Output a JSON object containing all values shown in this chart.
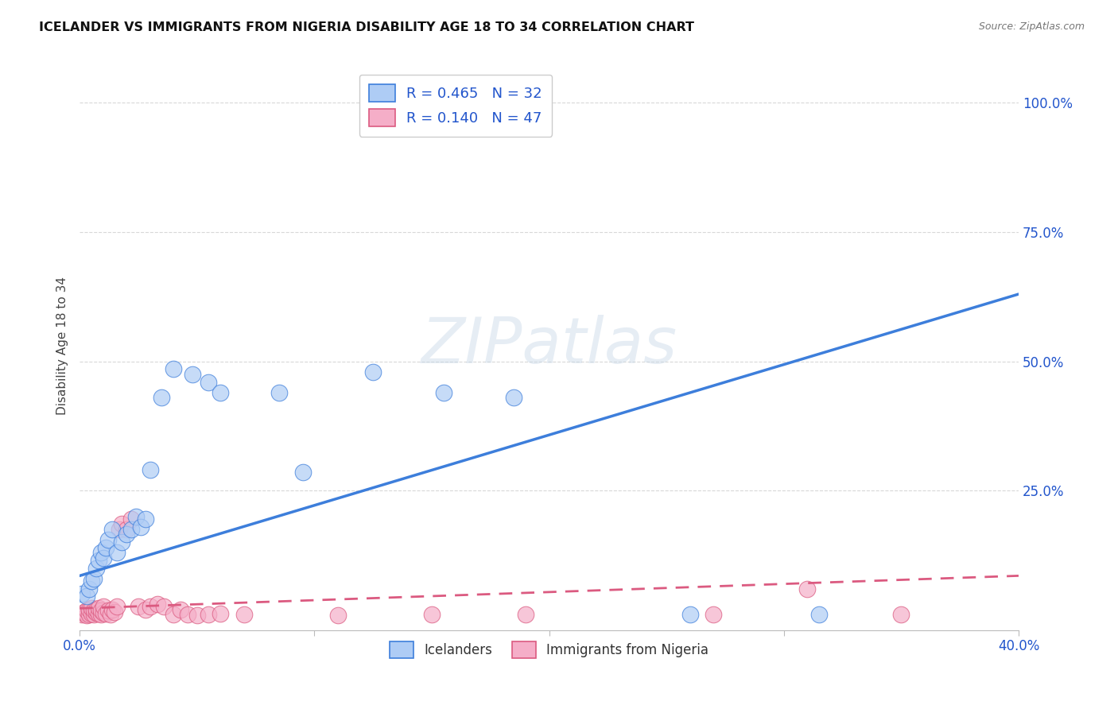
{
  "title": "ICELANDER VS IMMIGRANTS FROM NIGERIA DISABILITY AGE 18 TO 34 CORRELATION CHART",
  "source": "Source: ZipAtlas.com",
  "ylabel": "Disability Age 18 to 34",
  "xlim": [
    0.0,
    0.4
  ],
  "ylim": [
    -0.02,
    1.08
  ],
  "x_ticks": [
    0.0,
    0.1,
    0.2,
    0.3,
    0.4
  ],
  "x_tick_labels": [
    "0.0%",
    "",
    "",
    "",
    "40.0%"
  ],
  "y_ticks_right": [
    0.0,
    0.25,
    0.5,
    0.75,
    1.0
  ],
  "y_tick_labels_right": [
    "",
    "25.0%",
    "50.0%",
    "75.0%",
    "100.0%"
  ],
  "blue_R": 0.465,
  "blue_N": 32,
  "pink_R": 0.14,
  "pink_N": 47,
  "blue_color": "#aeccf5",
  "pink_color": "#f5aec8",
  "blue_line_color": "#3d7edb",
  "pink_line_color": "#db5a80",
  "blue_scatter_x": [
    0.001,
    0.003,
    0.004,
    0.005,
    0.006,
    0.007,
    0.008,
    0.009,
    0.01,
    0.011,
    0.012,
    0.014,
    0.016,
    0.018,
    0.02,
    0.022,
    0.024,
    0.026,
    0.028,
    0.03,
    0.035,
    0.04,
    0.048,
    0.055,
    0.06,
    0.085,
    0.095,
    0.125,
    0.155,
    0.185,
    0.26,
    0.315
  ],
  "blue_scatter_y": [
    0.05,
    0.045,
    0.06,
    0.075,
    0.08,
    0.1,
    0.115,
    0.13,
    0.12,
    0.14,
    0.155,
    0.175,
    0.13,
    0.15,
    0.165,
    0.175,
    0.2,
    0.18,
    0.195,
    0.29,
    0.43,
    0.485,
    0.475,
    0.46,
    0.44,
    0.44,
    0.285,
    0.48,
    0.44,
    0.43,
    0.01,
    0.01
  ],
  "pink_scatter_x": [
    0.001,
    0.002,
    0.002,
    0.003,
    0.003,
    0.004,
    0.004,
    0.005,
    0.005,
    0.006,
    0.006,
    0.007,
    0.007,
    0.008,
    0.008,
    0.009,
    0.009,
    0.01,
    0.01,
    0.011,
    0.012,
    0.013,
    0.014,
    0.015,
    0.016,
    0.017,
    0.018,
    0.02,
    0.022,
    0.025,
    0.028,
    0.03,
    0.033,
    0.036,
    0.04,
    0.043,
    0.046,
    0.05,
    0.055,
    0.06,
    0.07,
    0.11,
    0.15,
    0.19,
    0.27,
    0.31,
    0.35
  ],
  "pink_scatter_y": [
    0.01,
    0.012,
    0.015,
    0.008,
    0.018,
    0.01,
    0.02,
    0.012,
    0.022,
    0.01,
    0.018,
    0.014,
    0.02,
    0.012,
    0.022,
    0.01,
    0.018,
    0.014,
    0.025,
    0.012,
    0.018,
    0.01,
    0.02,
    0.015,
    0.025,
    0.175,
    0.185,
    0.175,
    0.195,
    0.025,
    0.02,
    0.025,
    0.03,
    0.025,
    0.01,
    0.02,
    0.01,
    0.008,
    0.01,
    0.012,
    0.01,
    0.008,
    0.01,
    0.01,
    0.01,
    0.06,
    0.01
  ],
  "blue_line_x": [
    0.0,
    0.4
  ],
  "blue_line_y": [
    0.085,
    0.63
  ],
  "pink_line_x": [
    0.0,
    0.4
  ],
  "pink_line_y": [
    0.022,
    0.085
  ],
  "watermark": "ZIPatlas",
  "grid_color": "#d8d8d8",
  "background_color": "#ffffff",
  "legend_labels": [
    "Icelanders",
    "Immigrants from Nigeria"
  ]
}
